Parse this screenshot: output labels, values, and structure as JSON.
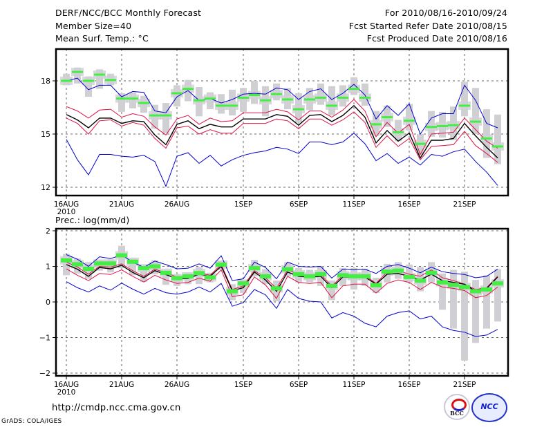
{
  "header": {
    "left": [
      "DERF/NCC/BCC Monthly Forecast",
      "Member Size=40",
      "Mean Surf. Temp.: °C"
    ],
    "right": [
      "For 2010/08/16-2010/09/24",
      "Fcst Started Refer Date 2010/08/15",
      "Fcst Produced Date 2010/08/16"
    ]
  },
  "footer": {
    "url": "http://cmdp.ncc.cma.gov.cn",
    "credit": "GrADS: COLA/IGES",
    "logos": [
      "BCC",
      "NCC"
    ]
  },
  "colors": {
    "envelope": "#0000cc",
    "spread": "#dd1144",
    "mean": "#000000",
    "marker": "#44ee44",
    "bar": "#d0d0d4",
    "grid": "#666666"
  },
  "chart_data": [
    {
      "type": "line",
      "title": "Mean Surf. Temp.: °C",
      "xlabel": "",
      "ylabel": "",
      "ylim": [
        11.5,
        20.5
      ],
      "yticks": [
        12,
        15,
        18
      ],
      "xtick_labels": [
        "16AUG",
        "21AUG",
        "26AUG",
        "1SEP",
        "6SEP",
        "11SEP",
        "16SEP",
        "21SEP"
      ],
      "xtick_days": [
        0,
        5,
        10,
        16,
        21,
        26,
        31,
        36
      ],
      "year_label": "2010",
      "grid": true,
      "days": 40,
      "series": [
        {
          "name": "max",
          "role": "envelope",
          "values": [
            18.0,
            18.15,
            17.5,
            17.75,
            17.75,
            17.1,
            17.4,
            17.35,
            16.3,
            16.2,
            17.1,
            17.45,
            16.9,
            17.0,
            16.75,
            16.95,
            17.25,
            17.3,
            17.25,
            17.6,
            17.5,
            16.95,
            17.4,
            17.55,
            16.95,
            17.3,
            17.8,
            17.2,
            15.85,
            16.6,
            16.05,
            16.7,
            15.0,
            15.9,
            16.15,
            16.15,
            17.75,
            16.9,
            15.6,
            15.35
          ]
        },
        {
          "name": "upper",
          "role": "spread",
          "values": [
            16.55,
            16.3,
            15.9,
            16.35,
            16.4,
            15.95,
            16.15,
            16.0,
            15.4,
            14.95,
            15.85,
            16.05,
            15.55,
            15.9,
            15.7,
            15.75,
            16.2,
            16.2,
            16.2,
            16.4,
            16.25,
            15.8,
            16.3,
            16.3,
            15.95,
            16.35,
            16.95,
            16.3,
            14.85,
            15.65,
            15.05,
            15.55,
            13.85,
            15.0,
            15.05,
            15.1,
            15.9,
            15.25,
            14.6,
            14.2
          ]
        },
        {
          "name": "mean",
          "role": "mean",
          "values": [
            16.1,
            15.8,
            15.35,
            15.9,
            15.9,
            15.6,
            15.75,
            15.7,
            14.95,
            14.4,
            15.55,
            15.75,
            15.3,
            15.55,
            15.4,
            15.4,
            15.85,
            15.85,
            15.85,
            16.1,
            16.0,
            15.5,
            16.05,
            16.1,
            15.7,
            16.05,
            16.6,
            15.95,
            14.5,
            15.2,
            14.6,
            15.05,
            13.65,
            14.65,
            14.65,
            14.75,
            15.6,
            14.9,
            14.25,
            13.65
          ]
        },
        {
          "name": "lower",
          "role": "spread",
          "values": [
            15.9,
            15.6,
            15.0,
            15.75,
            15.8,
            15.45,
            15.65,
            15.5,
            14.75,
            14.2,
            15.35,
            15.45,
            15.0,
            15.25,
            15.05,
            15.05,
            15.6,
            15.6,
            15.6,
            15.85,
            15.75,
            15.3,
            15.85,
            15.85,
            15.5,
            15.8,
            16.25,
            15.65,
            14.25,
            14.9,
            14.3,
            14.75,
            13.55,
            14.3,
            14.35,
            14.4,
            15.15,
            14.35,
            13.9,
            13.4
          ]
        },
        {
          "name": "min",
          "role": "envelope",
          "values": [
            14.7,
            13.55,
            12.7,
            13.85,
            13.85,
            13.75,
            13.7,
            13.8,
            13.45,
            12.05,
            13.75,
            13.95,
            13.35,
            13.8,
            13.2,
            13.55,
            13.8,
            13.95,
            14.05,
            14.25,
            14.15,
            13.9,
            14.55,
            14.55,
            14.4,
            14.55,
            15.05,
            14.45,
            13.5,
            13.9,
            13.35,
            13.7,
            13.25,
            13.85,
            13.75,
            14.0,
            14.15,
            13.45,
            12.85,
            12.1
          ]
        }
      ],
      "markers": {
        "name": "observed",
        "values": [
          18.0,
          18.5,
          18.0,
          18.35,
          18.05,
          17.0,
          17.0,
          16.75,
          16.05,
          16.05,
          17.3,
          17.55,
          16.9,
          17.0,
          16.6,
          16.6,
          17.05,
          17.2,
          16.9,
          17.25,
          16.95,
          16.4,
          16.95,
          17.05,
          16.6,
          17.05,
          17.55,
          17.05,
          15.55,
          15.95,
          15.1,
          15.75,
          14.45,
          15.4,
          15.45,
          15.5,
          16.6,
          15.7,
          14.75,
          14.3
        ]
      },
      "bars": {
        "name": "member range",
        "low": [
          17.75,
          17.85,
          17.1,
          17.55,
          17.75,
          16.25,
          16.45,
          16.2,
          15.3,
          15.05,
          16.55,
          16.85,
          16.0,
          16.4,
          16.15,
          16.05,
          16.25,
          16.7,
          16.0,
          16.9,
          16.4,
          15.65,
          16.35,
          16.65,
          16.05,
          16.55,
          17.2,
          16.6,
          14.9,
          15.4,
          14.6,
          15.2,
          13.8,
          14.85,
          14.8,
          14.65,
          16.0,
          15.0,
          13.65,
          13.3
        ],
        "high": [
          18.4,
          18.75,
          18.25,
          18.65,
          18.4,
          17.3,
          17.35,
          17.15,
          16.65,
          16.75,
          17.75,
          18.05,
          17.65,
          17.35,
          17.25,
          17.5,
          17.6,
          18.0,
          17.7,
          17.85,
          17.6,
          17.3,
          17.6,
          17.85,
          17.7,
          17.75,
          18.2,
          17.85,
          16.3,
          16.6,
          15.8,
          16.7,
          15.0,
          16.3,
          16.25,
          16.55,
          17.95,
          17.6,
          16.4,
          16.1
        ]
      }
    },
    {
      "type": "line",
      "title": "Prec.: log(mm/d)",
      "xlabel": "",
      "ylabel": "",
      "ylim": [
        -2.1,
        2.1
      ],
      "yticks": [
        -2,
        -1,
        0,
        1,
        2
      ],
      "xtick_labels": [
        "16AUG",
        "21AUG",
        "26AUG",
        "1SEP",
        "6SEP",
        "11SEP",
        "16SEP",
        "21SEP"
      ],
      "xtick_days": [
        0,
        5,
        10,
        16,
        21,
        26,
        31,
        36
      ],
      "year_label": "2010",
      "grid": true,
      "days": 40,
      "series": [
        {
          "name": "max",
          "role": "envelope",
          "values": [
            1.33,
            1.2,
            1.0,
            1.27,
            1.22,
            1.32,
            1.12,
            0.97,
            1.15,
            1.05,
            0.93,
            0.95,
            1.07,
            0.95,
            1.3,
            0.6,
            0.65,
            1.12,
            0.97,
            0.65,
            1.12,
            1.0,
            0.98,
            1.0,
            0.67,
            0.92,
            0.9,
            0.92,
            0.8,
            1.0,
            1.05,
            0.95,
            0.82,
            0.98,
            0.85,
            0.8,
            0.77,
            0.68,
            0.72,
            0.92
          ]
        },
        {
          "name": "upper",
          "role": "spread",
          "values": [
            1.12,
            0.98,
            0.78,
            1.0,
            0.98,
            1.07,
            0.88,
            0.72,
            0.92,
            0.82,
            0.7,
            0.7,
            0.82,
            0.75,
            1.05,
            0.35,
            0.45,
            0.88,
            0.68,
            0.38,
            0.9,
            0.78,
            0.75,
            0.78,
            0.45,
            0.75,
            0.75,
            0.75,
            0.52,
            0.85,
            0.88,
            0.78,
            0.72,
            0.9,
            0.68,
            0.6,
            0.5,
            0.35,
            0.4,
            0.72
          ]
        },
        {
          "name": "mean",
          "role": "mean",
          "values": [
            1.05,
            0.92,
            0.72,
            0.97,
            0.93,
            1.03,
            0.83,
            0.68,
            0.88,
            0.77,
            0.65,
            0.66,
            0.78,
            0.72,
            1.0,
            0.32,
            0.4,
            0.84,
            0.62,
            0.3,
            0.84,
            0.72,
            0.7,
            0.72,
            0.4,
            0.7,
            0.7,
            0.7,
            0.5,
            0.78,
            0.8,
            0.72,
            0.62,
            0.78,
            0.6,
            0.55,
            0.5,
            0.3,
            0.38,
            0.7
          ]
        },
        {
          "name": "lower",
          "role": "spread",
          "values": [
            0.93,
            0.75,
            0.6,
            0.8,
            0.77,
            0.9,
            0.72,
            0.56,
            0.75,
            0.62,
            0.52,
            0.55,
            0.67,
            0.58,
            0.9,
            0.15,
            0.2,
            0.7,
            0.48,
            0.1,
            0.72,
            0.55,
            0.52,
            0.55,
            0.12,
            0.45,
            0.5,
            0.5,
            0.25,
            0.52,
            0.62,
            0.55,
            0.35,
            0.55,
            0.42,
            0.38,
            0.32,
            0.12,
            0.18,
            0.42
          ]
        },
        {
          "name": "min",
          "role": "envelope",
          "values": [
            0.57,
            0.4,
            0.28,
            0.45,
            0.33,
            0.53,
            0.36,
            0.22,
            0.38,
            0.26,
            0.22,
            0.28,
            0.42,
            0.28,
            0.52,
            -0.12,
            -0.02,
            0.35,
            0.2,
            -0.18,
            0.35,
            0.1,
            0.02,
            0.0,
            -0.45,
            -0.3,
            -0.4,
            -0.6,
            -0.7,
            -0.4,
            -0.3,
            -0.25,
            -0.48,
            -0.4,
            -0.7,
            -0.8,
            -0.85,
            -0.97,
            -0.93,
            -0.77
          ]
        }
      ],
      "markers": {
        "name": "observed",
        "values": [
          1.17,
          1.06,
          0.93,
          1.08,
          1.08,
          1.31,
          1.13,
          0.95,
          1.0,
          0.82,
          0.67,
          0.72,
          0.81,
          0.69,
          1.05,
          0.3,
          0.52,
          0.95,
          0.72,
          0.38,
          0.92,
          0.78,
          0.72,
          0.78,
          0.45,
          0.75,
          0.72,
          0.72,
          0.47,
          0.85,
          0.88,
          0.7,
          0.6,
          0.82,
          0.55,
          0.48,
          0.42,
          0.3,
          0.35,
          0.52
        ]
      },
      "bars": {
        "name": "member range",
        "low": [
          0.75,
          0.8,
          0.65,
          0.88,
          0.83,
          0.95,
          0.75,
          0.56,
          0.78,
          0.48,
          0.45,
          0.5,
          0.5,
          0.55,
          0.9,
          0.05,
          0.25,
          0.72,
          0.5,
          0.02,
          0.72,
          0.55,
          0.55,
          0.45,
          0.05,
          0.45,
          0.35,
          0.45,
          0.25,
          0.55,
          0.65,
          0.55,
          0.3,
          0.55,
          -0.22,
          -0.75,
          -1.65,
          -1.15,
          -0.75,
          -0.55
        ],
        "high": [
          1.35,
          1.22,
          1.12,
          1.18,
          1.2,
          1.58,
          1.22,
          1.02,
          1.17,
          0.88,
          0.78,
          0.82,
          0.98,
          0.82,
          1.15,
          0.5,
          0.62,
          1.18,
          0.92,
          0.6,
          1.12,
          0.95,
          0.9,
          1.0,
          0.6,
          0.95,
          0.95,
          0.93,
          0.68,
          1.07,
          1.12,
          1.05,
          0.98,
          1.12,
          0.8,
          0.9,
          0.85,
          0.62,
          0.75,
          0.92
        ]
      }
    }
  ]
}
